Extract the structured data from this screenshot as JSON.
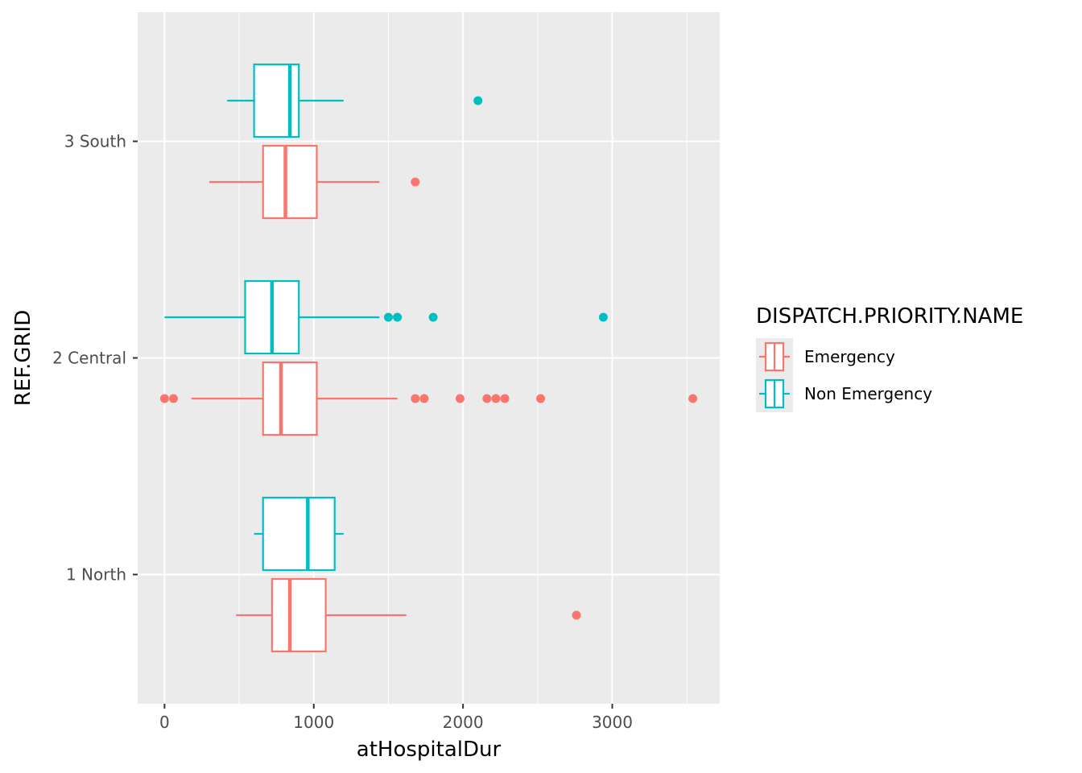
{
  "chart_data": {
    "type": "boxplot",
    "orientation": "horizontal",
    "xlabel": "atHospitalDur",
    "ylabel": "REF.GRID",
    "xlim": [
      -180,
      3720
    ],
    "x_ticks": [
      0,
      1000,
      2000,
      3000
    ],
    "x_tick_labels": [
      "0",
      "1000",
      "2000",
      "3000"
    ],
    "categories": [
      "1 North",
      "2 Central",
      "3 South"
    ],
    "grid": true,
    "legend": {
      "title": "DISPATCH.PRIORITY.NAME",
      "placement": "right",
      "entries": [
        "Emergency",
        "Non Emergency"
      ]
    },
    "series": [
      {
        "name": "Emergency",
        "color": "#F8766D",
        "boxes": [
          {
            "category": "1 North",
            "whisker_low": 480,
            "q1": 720,
            "median": 840,
            "q3": 1080,
            "whisker_high": 1620,
            "outliers": [
              2760
            ]
          },
          {
            "category": "2 Central",
            "whisker_low": 180,
            "q1": 660,
            "median": 780,
            "q3": 1020,
            "whisker_high": 1560,
            "outliers": [
              0,
              60,
              1680,
              1740,
              1980,
              2160,
              2220,
              2280,
              2520,
              3540
            ]
          },
          {
            "category": "3 South",
            "whisker_low": 300,
            "q1": 660,
            "median": 810,
            "q3": 1020,
            "whisker_high": 1440,
            "outliers": [
              1680
            ]
          }
        ]
      },
      {
        "name": "Non Emergency",
        "color": "#00BFC4",
        "boxes": [
          {
            "category": "1 North",
            "whisker_low": 600,
            "q1": 660,
            "median": 960,
            "q3": 1140,
            "whisker_high": 1200,
            "outliers": []
          },
          {
            "category": "2 Central",
            "whisker_low": 0,
            "q1": 540,
            "median": 720,
            "q3": 900,
            "whisker_high": 1440,
            "outliers": [
              1500,
              1560,
              1800,
              2940
            ]
          },
          {
            "category": "3 South",
            "whisker_low": 420,
            "q1": 600,
            "median": 840,
            "q3": 900,
            "whisker_high": 1200,
            "outliers": [
              2100
            ]
          }
        ]
      }
    ]
  }
}
